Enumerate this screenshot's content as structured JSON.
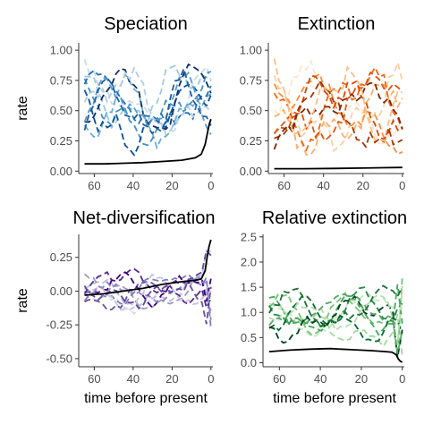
{
  "figure": {
    "background": "#ffffff"
  },
  "chart_data": [
    {
      "id": "spec",
      "type": "line",
      "title": "Speciation",
      "xlabel": "",
      "ylabel": "rate",
      "xlim": [
        68,
        -1
      ],
      "ylim": [
        -0.02,
        1.06
      ],
      "xticks": [
        60,
        40,
        20,
        0
      ],
      "yticks": [
        0.0,
        0.25,
        0.5,
        0.75,
        1.0
      ],
      "ytick_labels": [
        "0.00",
        "0.25",
        "0.50",
        "0.75",
        "1.00"
      ],
      "palette": [
        "#c6dbef",
        "#9ecae1",
        "#6baed6",
        "#4292c6",
        "#2171b5",
        "#08519c",
        "#08306b",
        "#b3cde3",
        "#5a9bd4",
        "#1f5f9e"
      ],
      "curves": {
        "seed": 11,
        "n": 10,
        "center": 0.55,
        "amp": 0.28,
        "min": 0.12,
        "max": 1.02,
        "spike": 0
      },
      "reference_line": {
        "color": "#000000",
        "x": [
          65,
          55,
          45,
          35,
          25,
          15,
          8,
          5,
          3,
          2,
          1,
          0
        ],
        "y": [
          0.06,
          0.06,
          0.065,
          0.07,
          0.08,
          0.09,
          0.11,
          0.14,
          0.22,
          0.3,
          0.38,
          0.43
        ]
      }
    },
    {
      "id": "ext",
      "type": "line",
      "title": "Extinction",
      "xlabel": "",
      "ylabel": "",
      "xlim": [
        68,
        -1
      ],
      "ylim": [
        -0.02,
        1.06
      ],
      "xticks": [
        60,
        40,
        20,
        0
      ],
      "yticks": [
        0.0,
        0.25,
        0.5,
        0.75,
        1.0
      ],
      "ytick_labels": [
        "0.00",
        "0.25",
        "0.50",
        "0.75",
        "1.00"
      ],
      "palette": [
        "#fee6ce",
        "#fdd0a2",
        "#fdae6b",
        "#fd8d3c",
        "#f16913",
        "#d94801",
        "#a63603",
        "#7f2704",
        "#e6550d",
        "#fdbe85"
      ],
      "curves": {
        "seed": 23,
        "n": 10,
        "center": 0.5,
        "amp": 0.32,
        "min": 0.08,
        "max": 1.0,
        "spike": 0
      },
      "reference_line": {
        "color": "#000000",
        "x": [
          65,
          50,
          35,
          20,
          10,
          0
        ],
        "y": [
          0.02,
          0.02,
          0.022,
          0.025,
          0.028,
          0.03
        ]
      }
    },
    {
      "id": "net",
      "type": "line",
      "title": "Net-diversification",
      "xlabel": "time before present",
      "ylabel": "rate",
      "xlim": [
        68,
        -1
      ],
      "ylim": [
        -0.56,
        0.42
      ],
      "xticks": [
        60,
        40,
        20,
        0
      ],
      "yticks": [
        -0.5,
        -0.25,
        0.0,
        0.25
      ],
      "ytick_labels": [
        "-0.50",
        "-0.25",
        "0.00",
        "0.25"
      ],
      "palette": [
        "#dadaeb",
        "#bcbddc",
        "#9e9ac8",
        "#807dba",
        "#6a51a3",
        "#54278f",
        "#3f007d",
        "#c4c3e0",
        "#8d87c1",
        "#5e4b9c"
      ],
      "curves": {
        "seed": 37,
        "n": 10,
        "center": 0.02,
        "amp": 0.13,
        "min": -0.32,
        "max": 0.3,
        "spike": 0.28
      },
      "reference_line": {
        "color": "#000000",
        "x": [
          65,
          55,
          45,
          35,
          25,
          15,
          8,
          5,
          3,
          2,
          1,
          0
        ],
        "y": [
          -0.03,
          -0.02,
          0.0,
          0.02,
          0.05,
          0.07,
          0.08,
          0.09,
          0.15,
          0.25,
          0.33,
          0.38
        ]
      }
    },
    {
      "id": "rel",
      "type": "line",
      "title": "Relative extinction",
      "xlabel": "time before present",
      "ylabel": "",
      "xlim": [
        68,
        -1
      ],
      "ylim": [
        -0.08,
        2.55
      ],
      "xticks": [
        60,
        40,
        20,
        0
      ],
      "yticks": [
        0.0,
        0.5,
        1.0,
        1.5,
        2.0,
        2.5
      ],
      "ytick_labels": [
        "0.0",
        "0.5",
        "1.0",
        "1.5",
        "2.0",
        "2.5"
      ],
      "palette": [
        "#c7e9c0",
        "#a1d99b",
        "#74c476",
        "#41ab5d",
        "#238b45",
        "#006d2c",
        "#00441b",
        "#b5dcad",
        "#5aa469",
        "#1f6e3a"
      ],
      "curves": {
        "seed": 53,
        "n": 10,
        "center": 0.95,
        "amp": 0.42,
        "min": 0.1,
        "max": 2.35,
        "spike": 1.2
      },
      "reference_line": {
        "color": "#000000",
        "x": [
          65,
          55,
          45,
          35,
          25,
          15,
          8,
          5,
          3,
          2,
          1,
          0
        ],
        "y": [
          0.22,
          0.25,
          0.27,
          0.28,
          0.26,
          0.24,
          0.22,
          0.21,
          0.16,
          0.08,
          0.03,
          0.01
        ]
      }
    }
  ]
}
